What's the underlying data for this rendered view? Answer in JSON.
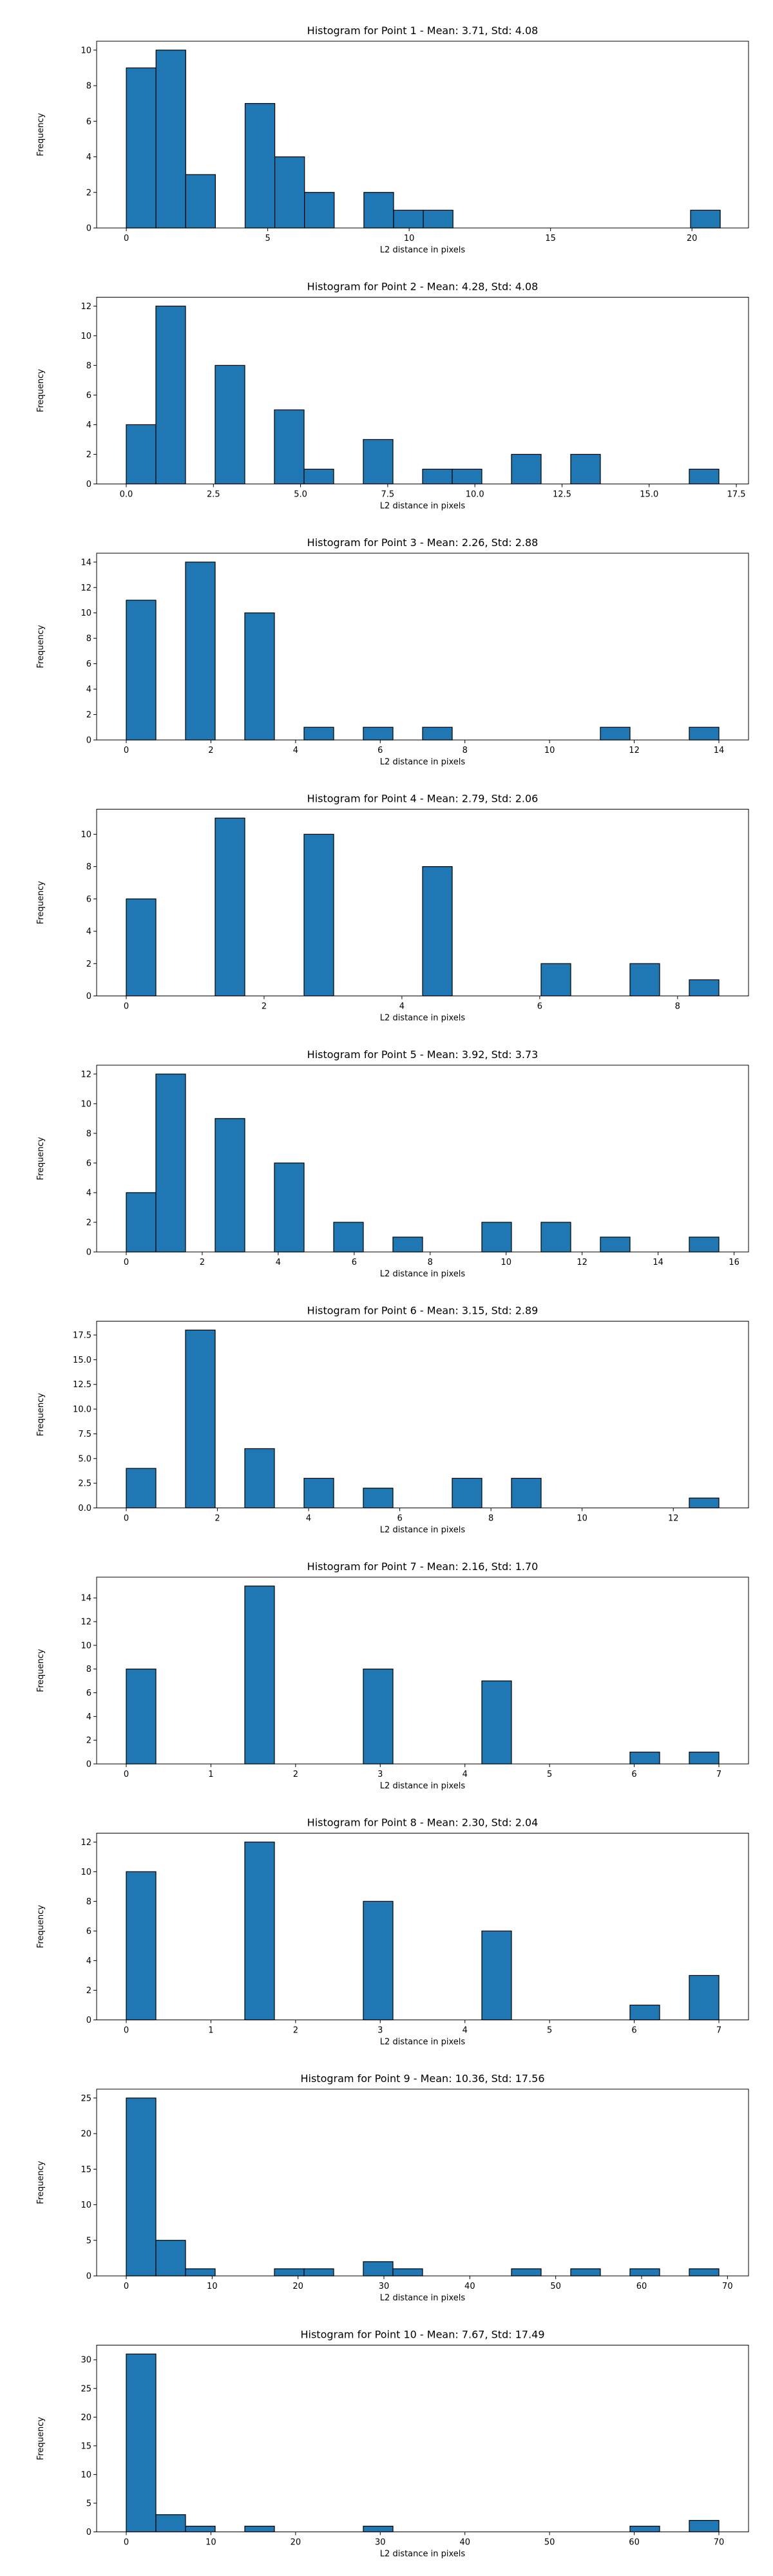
{
  "figure": {
    "bar_color": "#1f77b4",
    "edge_color": "#000000",
    "background": "#ffffff"
  },
  "chart_data": [
    {
      "type": "bar",
      "title": "Histogram for Point 1 - Mean: 3.71, Std: 4.08",
      "xlabel": "L2 distance in pixels",
      "ylabel": "Frequency",
      "xlim": [
        -1.05,
        22.0
      ],
      "ylim": [
        0,
        10.5
      ],
      "xticks": [
        0,
        5,
        10,
        15,
        20
      ],
      "xtick_labels": [
        "0",
        "5",
        "10",
        "15",
        "20"
      ],
      "yticks": [
        0,
        2,
        4,
        6,
        8,
        10
      ],
      "ytick_labels": [
        "0",
        "2",
        "4",
        "6",
        "8",
        "10"
      ],
      "bin_edges": [
        0.0,
        1.05,
        2.1,
        3.15,
        4.2,
        5.25,
        6.3,
        7.35,
        8.4,
        9.45,
        10.5,
        11.55,
        12.6,
        13.65,
        14.7,
        15.75,
        16.8,
        17.85,
        18.9,
        19.95,
        21.0
      ],
      "values": [
        9,
        10,
        3,
        0,
        7,
        4,
        2,
        0,
        2,
        1,
        1,
        0,
        0,
        0,
        0,
        0,
        0,
        0,
        0,
        1
      ]
    },
    {
      "type": "bar",
      "title": "Histogram for Point 2 - Mean: 4.28, Std: 4.08",
      "xlabel": "L2 distance in pixels",
      "ylabel": "Frequency",
      "xlim": [
        -0.85,
        17.85
      ],
      "ylim": [
        0,
        12.6
      ],
      "xticks": [
        0,
        2.5,
        5,
        7.5,
        10,
        12.5,
        15,
        17.5
      ],
      "xtick_labels": [
        "0.0",
        "2.5",
        "5.0",
        "7.5",
        "10.0",
        "12.5",
        "15.0",
        "17.5"
      ],
      "yticks": [
        0,
        2,
        4,
        6,
        8,
        10,
        12
      ],
      "ytick_labels": [
        "0",
        "2",
        "4",
        "6",
        "8",
        "10",
        "12"
      ],
      "bin_edges": [
        0.0,
        0.85,
        1.7,
        2.55,
        3.4,
        4.25,
        5.1,
        5.95,
        6.8,
        7.65,
        8.5,
        9.35,
        10.2,
        11.05,
        11.9,
        12.75,
        13.6,
        14.45,
        15.3,
        16.15,
        17.0
      ],
      "values": [
        4,
        12,
        0,
        8,
        0,
        5,
        1,
        0,
        3,
        0,
        1,
        1,
        0,
        2,
        0,
        2,
        0,
        0,
        0,
        1
      ]
    },
    {
      "type": "bar",
      "title": "Histogram for Point 3 - Mean: 2.26, Std: 2.88",
      "xlabel": "L2 distance in pixels",
      "ylabel": "Frequency",
      "xlim": [
        -0.7,
        14.7
      ],
      "ylim": [
        0,
        14.7
      ],
      "xticks": [
        0,
        2,
        4,
        6,
        8,
        10,
        12,
        14
      ],
      "xtick_labels": [
        "0",
        "2",
        "4",
        "6",
        "8",
        "10",
        "12",
        "14"
      ],
      "yticks": [
        0,
        2,
        4,
        6,
        8,
        10,
        12,
        14
      ],
      "ytick_labels": [
        "0",
        "2",
        "4",
        "6",
        "8",
        "10",
        "12",
        "14"
      ],
      "bin_edges": [
        0.0,
        0.7,
        1.4,
        2.1,
        2.8,
        3.5,
        4.2,
        4.9,
        5.6,
        6.3,
        7.0,
        7.7,
        8.4,
        9.1,
        9.8,
        10.5,
        11.2,
        11.9,
        12.6,
        13.3,
        14.0
      ],
      "values": [
        11,
        0,
        14,
        0,
        10,
        0,
        1,
        0,
        1,
        0,
        1,
        0,
        0,
        0,
        0,
        0,
        1,
        0,
        0,
        1
      ]
    },
    {
      "type": "bar",
      "title": "Histogram for Point 4 - Mean: 2.79, Std: 2.06",
      "xlabel": "L2 distance in pixels",
      "ylabel": "Frequency",
      "xlim": [
        -0.43,
        9.03
      ],
      "ylim": [
        0,
        11.55
      ],
      "xticks": [
        0,
        2,
        4,
        6,
        8
      ],
      "xtick_labels": [
        "0",
        "2",
        "4",
        "6",
        "8"
      ],
      "yticks": [
        0,
        2,
        4,
        6,
        8,
        10
      ],
      "ytick_labels": [
        "0",
        "2",
        "4",
        "6",
        "8",
        "10"
      ],
      "bin_edges": [
        0.0,
        0.43,
        0.86,
        1.29,
        1.72,
        2.15,
        2.58,
        3.01,
        3.44,
        3.87,
        4.3,
        4.73,
        5.16,
        5.59,
        6.02,
        6.45,
        6.88,
        7.31,
        7.74,
        8.17,
        8.6
      ],
      "values": [
        6,
        0,
        0,
        11,
        0,
        0,
        10,
        0,
        0,
        0,
        8,
        0,
        0,
        0,
        2,
        0,
        0,
        2,
        0,
        1
      ]
    },
    {
      "type": "bar",
      "title": "Histogram for Point 5 - Mean: 3.92, Std: 3.73",
      "xlabel": "L2 distance in pixels",
      "ylabel": "Frequency",
      "xlim": [
        -0.78,
        16.38
      ],
      "ylim": [
        0,
        12.6
      ],
      "xticks": [
        0,
        2,
        4,
        6,
        8,
        10,
        12,
        14,
        16
      ],
      "xtick_labels": [
        "0",
        "2",
        "4",
        "6",
        "8",
        "10",
        "12",
        "14",
        "16"
      ],
      "yticks": [
        0,
        2,
        4,
        6,
        8,
        10,
        12
      ],
      "ytick_labels": [
        "0",
        "2",
        "4",
        "6",
        "8",
        "10",
        "12"
      ],
      "bin_edges": [
        0.0,
        0.78,
        1.56,
        2.34,
        3.12,
        3.9,
        4.68,
        5.46,
        6.24,
        7.02,
        7.8,
        8.58,
        9.36,
        10.14,
        10.92,
        11.7,
        12.48,
        13.26,
        14.04,
        14.82,
        15.6
      ],
      "values": [
        4,
        12,
        0,
        9,
        0,
        6,
        0,
        2,
        0,
        1,
        0,
        0,
        2,
        0,
        2,
        0,
        1,
        0,
        0,
        1
      ]
    },
    {
      "type": "bar",
      "title": "Histogram for Point 6 - Mean: 3.15, Std: 2.89",
      "xlabel": "L2 distance in pixels",
      "ylabel": "Frequency",
      "xlim": [
        -0.65,
        13.65
      ],
      "ylim": [
        0,
        18.9
      ],
      "xticks": [
        0,
        2,
        4,
        6,
        8,
        10,
        12
      ],
      "xtick_labels": [
        "0",
        "2",
        "4",
        "6",
        "8",
        "10",
        "12"
      ],
      "yticks": [
        0,
        2.5,
        5,
        7.5,
        10,
        12.5,
        15,
        17.5
      ],
      "ytick_labels": [
        "0.0",
        "2.5",
        "5.0",
        "7.5",
        "10.0",
        "12.5",
        "15.0",
        "17.5"
      ],
      "bin_edges": [
        0.0,
        0.65,
        1.3,
        1.95,
        2.6,
        3.25,
        3.9,
        4.55,
        5.2,
        5.85,
        6.5,
        7.15,
        7.8,
        8.45,
        9.1,
        9.75,
        10.4,
        11.05,
        11.7,
        12.35,
        13.0
      ],
      "values": [
        4,
        0,
        18,
        0,
        6,
        0,
        3,
        0,
        2,
        0,
        0,
        3,
        0,
        3,
        0,
        0,
        0,
        0,
        0,
        1
      ]
    },
    {
      "type": "bar",
      "title": "Histogram for Point 7 - Mean: 2.16, Std: 1.70",
      "xlabel": "L2 distance in pixels",
      "ylabel": "Frequency",
      "xlim": [
        -0.35,
        7.35
      ],
      "ylim": [
        0,
        15.75
      ],
      "xticks": [
        0,
        1,
        2,
        3,
        4,
        5,
        6,
        7
      ],
      "xtick_labels": [
        "0",
        "1",
        "2",
        "3",
        "4",
        "5",
        "6",
        "7"
      ],
      "yticks": [
        0,
        2,
        4,
        6,
        8,
        10,
        12,
        14
      ],
      "ytick_labels": [
        "0",
        "2",
        "4",
        "6",
        "8",
        "10",
        "12",
        "14"
      ],
      "bin_edges": [
        0.0,
        0.35,
        0.7,
        1.05,
        1.4,
        1.75,
        2.1,
        2.45,
        2.8,
        3.15,
        3.5,
        3.85,
        4.2,
        4.55,
        4.9,
        5.25,
        5.6,
        5.95,
        6.3,
        6.65,
        7.0
      ],
      "values": [
        8,
        0,
        0,
        0,
        15,
        0,
        0,
        0,
        8,
        0,
        0,
        0,
        7,
        0,
        0,
        0,
        0,
        1,
        0,
        1
      ]
    },
    {
      "type": "bar",
      "title": "Histogram for Point 8 - Mean: 2.30, Std: 2.04",
      "xlabel": "L2 distance in pixels",
      "ylabel": "Frequency",
      "xlim": [
        -0.35,
        7.35
      ],
      "ylim": [
        0,
        12.6
      ],
      "xticks": [
        0,
        1,
        2,
        3,
        4,
        5,
        6,
        7
      ],
      "xtick_labels": [
        "0",
        "1",
        "2",
        "3",
        "4",
        "5",
        "6",
        "7"
      ],
      "yticks": [
        0,
        2,
        4,
        6,
        8,
        10,
        12
      ],
      "ytick_labels": [
        "0",
        "2",
        "4",
        "6",
        "8",
        "10",
        "12"
      ],
      "bin_edges": [
        0.0,
        0.35,
        0.7,
        1.05,
        1.4,
        1.75,
        2.1,
        2.45,
        2.8,
        3.15,
        3.5,
        3.85,
        4.2,
        4.55,
        4.9,
        5.25,
        5.6,
        5.95,
        6.3,
        6.65,
        7.0
      ],
      "values": [
        10,
        0,
        0,
        0,
        12,
        0,
        0,
        0,
        8,
        0,
        0,
        0,
        6,
        0,
        0,
        0,
        0,
        1,
        0,
        3
      ]
    },
    {
      "type": "bar",
      "title": "Histogram for Point 9 - Mean: 10.36, Std: 17.56",
      "xlabel": "L2 distance in pixels",
      "ylabel": "Frequency",
      "xlim": [
        -3.45,
        72.45
      ],
      "ylim": [
        0,
        26.25
      ],
      "xticks": [
        0,
        10,
        20,
        30,
        40,
        50,
        60,
        70
      ],
      "xtick_labels": [
        "0",
        "10",
        "20",
        "30",
        "40",
        "50",
        "60",
        "70"
      ],
      "yticks": [
        0,
        5,
        10,
        15,
        20,
        25
      ],
      "ytick_labels": [
        "0",
        "5",
        "10",
        "15",
        "20",
        "25"
      ],
      "bin_edges": [
        0.0,
        3.45,
        6.9,
        10.35,
        13.8,
        17.25,
        20.7,
        24.15,
        27.6,
        31.05,
        34.5,
        37.95,
        41.4,
        44.85,
        48.3,
        51.75,
        55.2,
        58.65,
        62.1,
        65.55,
        69.0
      ],
      "values": [
        25,
        5,
        1,
        0,
        0,
        1,
        1,
        0,
        2,
        1,
        0,
        0,
        0,
        1,
        0,
        1,
        0,
        1,
        0,
        1
      ]
    },
    {
      "type": "bar",
      "title": "Histogram for Point 10 - Mean: 7.67, Std: 17.49",
      "xlabel": "L2 distance in pixels",
      "ylabel": "Frequency",
      "xlim": [
        -3.5,
        73.5
      ],
      "ylim": [
        0,
        32.55
      ],
      "xticks": [
        0,
        10,
        20,
        30,
        40,
        50,
        60,
        70
      ],
      "xtick_labels": [
        "0",
        "10",
        "20",
        "30",
        "40",
        "50",
        "60",
        "70"
      ],
      "yticks": [
        0,
        5,
        10,
        15,
        20,
        25,
        30
      ],
      "ytick_labels": [
        "0",
        "5",
        "10",
        "15",
        "20",
        "25",
        "30"
      ],
      "bin_edges": [
        0.0,
        3.5,
        7.0,
        10.5,
        14.0,
        17.5,
        21.0,
        24.5,
        28.0,
        31.5,
        35.0,
        38.5,
        42.0,
        45.5,
        49.0,
        52.5,
        56.0,
        59.5,
        63.0,
        66.5,
        70.0
      ],
      "values": [
        31,
        3,
        1,
        0,
        1,
        0,
        0,
        0,
        1,
        0,
        0,
        0,
        0,
        0,
        0,
        0,
        0,
        1,
        0,
        2
      ]
    }
  ]
}
